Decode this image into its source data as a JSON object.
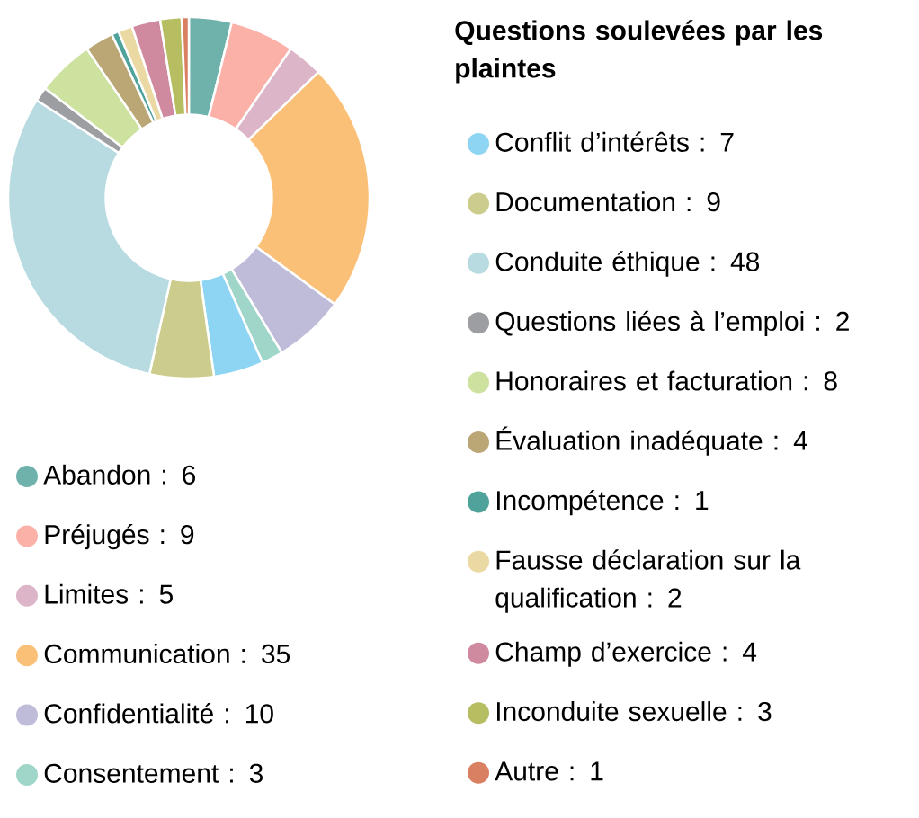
{
  "chart_data": {
    "type": "donut",
    "title": "Questions soulevées par les plaintes",
    "categories": [
      "Abandon",
      "Préjugés",
      "Limites",
      "Communication",
      "Confidentialité",
      "Consentement",
      "Conflit d’intérêts",
      "Documentation",
      "Conduite éthique",
      "Questions liées à l’emploi",
      "Honoraires et facturation",
      "Évaluation inadéquate",
      "Incompétence",
      "Fausse déclaration sur la qualification",
      "Champ d’exercice",
      "Inconduite sexuelle",
      "Autre"
    ],
    "values": [
      6,
      9,
      5,
      35,
      10,
      3,
      7,
      9,
      48,
      2,
      8,
      4,
      1,
      2,
      4,
      3,
      1
    ],
    "colors": [
      "#6fb1ab",
      "#fbb1a7",
      "#dcb5c8",
      "#fbc077",
      "#bfbcda",
      "#9fd6c9",
      "#8ed4f3",
      "#cccd8c",
      "#b7dbe1",
      "#9d9ea2",
      "#cde29f",
      "#bba676",
      "#4fa39a",
      "#ebd9a3",
      "#d08aa0",
      "#b7bd61",
      "#d98062"
    ],
    "value_labels": [
      ": 6",
      ": 9",
      ": 5",
      ": 35",
      ": 10",
      ": 3",
      ": 7",
      ": 9",
      ": 48",
      ": 2",
      ": 8",
      ": 4",
      ": 1",
      ": 2",
      ": 4",
      ": 3",
      ": 1"
    ],
    "legend": "right"
  }
}
